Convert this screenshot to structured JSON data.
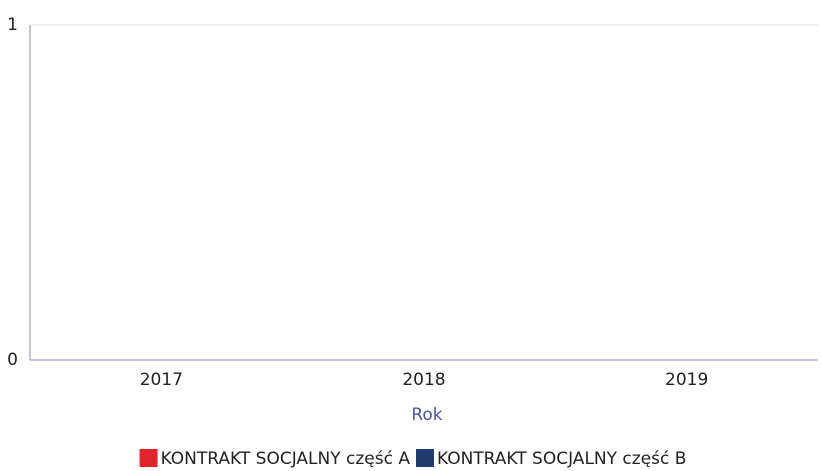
{
  "chart_data": {
    "type": "bar",
    "categories": [
      "2017",
      "2018",
      "2019"
    ],
    "series": [
      {
        "name": "KONTRAKT SOCJALNY część A",
        "color": "#e0262c",
        "values": [
          0,
          0,
          0
        ]
      },
      {
        "name": "KONTRAKT SOCJALNY część B",
        "color": "#1f3a6b",
        "values": [
          0,
          0,
          0
        ]
      }
    ],
    "x_label": "Rok",
    "ylim": [
      0,
      1
    ],
    "yticks": [
      0,
      1
    ],
    "grid": true,
    "legend": "bottom"
  }
}
